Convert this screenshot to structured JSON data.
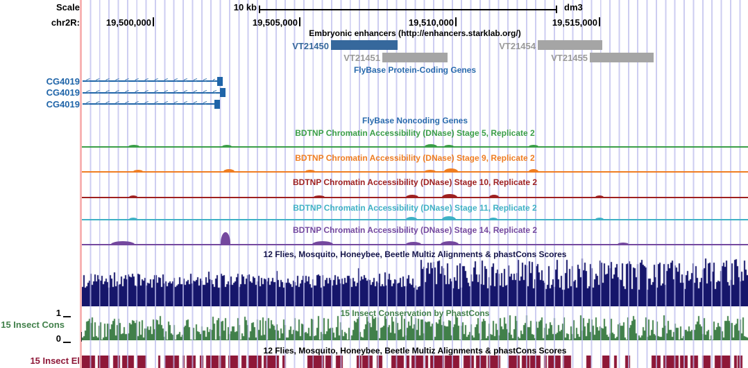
{
  "ruler": {
    "scale_label": "Scale",
    "scale_value": "10 kb",
    "assembly": "dm3",
    "chrom": "chr2R:",
    "ticks": [
      "19,500,000",
      "19,505,000",
      "19,510,000",
      "19,515,000"
    ]
  },
  "enhancers": {
    "title": "Embryonic enhancers (http://enhancers.starklab.org/)",
    "items": [
      {
        "name": "VT21450",
        "color": "#36689c",
        "text_color": "#36689c"
      },
      {
        "name": "VT21451",
        "color": "#a5a5a5",
        "text_color": "#999999"
      },
      {
        "name": "VT21454",
        "color": "#a5a5a5",
        "text_color": "#999999"
      },
      {
        "name": "VT21455",
        "color": "#a5a5a5",
        "text_color": "#999999"
      }
    ]
  },
  "genes": {
    "coding_title": "FlyBase Protein-Coding Genes",
    "noncoding_title": "FlyBase Noncoding Genes",
    "chevrons": "<<<<<<<<<<<<<<",
    "items": [
      {
        "name": "CG4019"
      },
      {
        "name": "CG4019"
      },
      {
        "name": "CG4019"
      }
    ]
  },
  "bdtnp": {
    "tracks": [
      {
        "title": "BDTNP Chromatin Accessibility (DNase) Stage 5, Replicate 2",
        "color": "#3a9e47",
        "bumps": [
          [
            185,
            16,
            2
          ],
          [
            320,
            14,
            2
          ],
          [
            612,
            18,
            3
          ],
          [
            640,
            14,
            2
          ],
          [
            762,
            14,
            2
          ]
        ]
      },
      {
        "title": "BDTNP Chromatin Accessibility (DNase) Stage 9, Replicate 2",
        "color": "#ef7d21",
        "bumps": [
          [
            192,
            14,
            2
          ],
          [
            322,
            16,
            3
          ],
          [
            440,
            14,
            2
          ],
          [
            612,
            16,
            2
          ],
          [
            640,
            20,
            4
          ],
          [
            762,
            14,
            3
          ]
        ]
      },
      {
        "title": "BDTNP Chromatin Accessibility (DNase) Stage 10, Replicate 2",
        "color": "#9e2020",
        "bumps": [
          [
            186,
            12,
            2
          ],
          [
            452,
            16,
            2
          ],
          [
            585,
            18,
            3
          ],
          [
            637,
            22,
            4
          ],
          [
            705,
            14,
            3
          ],
          [
            858,
            12,
            2
          ]
        ]
      },
      {
        "title": "BDTNP Chromatin Accessibility (DNase) Stage 11, Replicate 2",
        "color": "#3fb1c5",
        "bumps": [
          [
            186,
            12,
            2
          ],
          [
            585,
            16,
            3
          ],
          [
            637,
            20,
            4
          ],
          [
            705,
            12,
            2
          ],
          [
            858,
            12,
            2
          ]
        ]
      },
      {
        "title": "BDTNP Chromatin Accessibility (DNase) Stage 14, Replicate 2",
        "color": "#74489e",
        "bumps": [
          [
            160,
            34,
            4
          ],
          [
            318,
            14,
            17
          ],
          [
            450,
            30,
            4
          ],
          [
            585,
            22,
            3
          ],
          [
            635,
            26,
            4
          ],
          [
            890,
            16,
            2
          ]
        ]
      }
    ]
  },
  "multiz": {
    "title": "12 Flies, Mosquito, Honeybee, Beetle Multiz Alignments & phastCons Scores"
  },
  "phastcons": {
    "title": "15 Insect Conservation by PhastCons",
    "left_label": "15 Insect Cons",
    "axis_max": "1",
    "axis_min": "0"
  },
  "elements": {
    "left_label": "15 Insect El"
  },
  "colors": {
    "flybase_blue": "#2a6bad",
    "gene_blue": "#1f64a8",
    "chevron_blue": "#4c84b8",
    "multiz_fill": "#16166b",
    "multiz_title": "#15154a",
    "cons_green": "#41804a",
    "elements_maroon": "#8e1838",
    "grid_line": "#bcbcec",
    "left_edge_pink": "#f7b3b3",
    "black": "#000000"
  }
}
